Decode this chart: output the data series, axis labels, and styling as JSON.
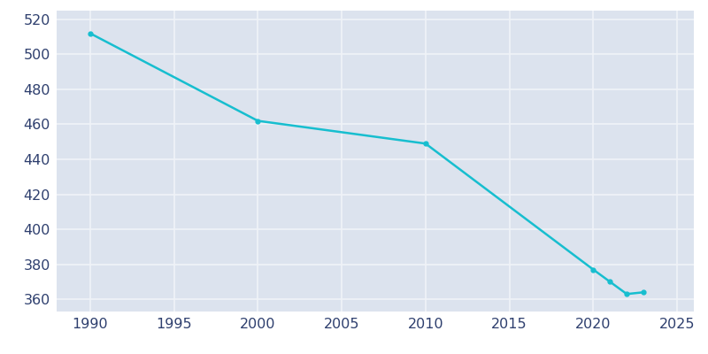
{
  "years": [
    1990,
    2000,
    2010,
    2020,
    2021,
    2022,
    2023
  ],
  "population": [
    512,
    462,
    449,
    377,
    370,
    363,
    364
  ],
  "line_color": "#17becf",
  "marker": "o",
  "marker_size": 3.5,
  "line_width": 1.8,
  "fig_bg_color": "#ffffff",
  "plot_bg_color": "#dce3ee",
  "grid_color": "#f0f3f8",
  "xlim": [
    1988,
    2026
  ],
  "ylim": [
    353,
    525
  ],
  "xticks": [
    1990,
    1995,
    2000,
    2005,
    2010,
    2015,
    2020,
    2025
  ],
  "yticks": [
    360,
    380,
    400,
    420,
    440,
    460,
    480,
    500,
    520
  ],
  "tick_color": "#2e3f6e",
  "tick_fontsize": 11.5
}
